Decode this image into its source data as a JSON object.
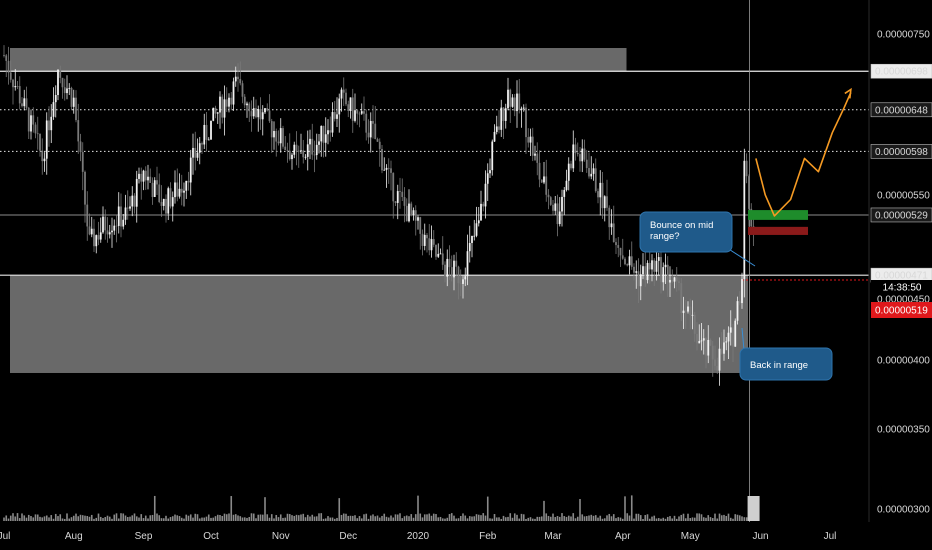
{
  "chart_data": {
    "type": "candlestick",
    "scale": "log",
    "ylim": [
      2.9e-06,
      7.9e-06
    ],
    "x_ticks": [
      "Jul",
      "Aug",
      "Sep",
      "Oct",
      "Nov",
      "Dec",
      "2020",
      "Feb",
      "Mar",
      "Apr",
      "May",
      "Jun",
      "Jul"
    ],
    "y_ticks": [
      "0.00000750",
      "0.00000550",
      "0.00000450",
      "0.00000400",
      "0.00000350",
      "0.00000300"
    ],
    "level_labels": [
      {
        "text": "0.00000698",
        "value": 6.98e-06,
        "style": "solid"
      },
      {
        "text": "0.00000648",
        "value": 6.48e-06,
        "style": "dotted"
      },
      {
        "text": "0.00000598",
        "value": 5.98e-06,
        "style": "dotted"
      },
      {
        "text": "0.00000529",
        "value": 5.29e-06,
        "style": "thin"
      },
      {
        "text": "0.00000471",
        "value": 4.71e-06,
        "style": "solid"
      }
    ],
    "current_price": {
      "label": "0.00000519",
      "countdown": "14:38:50",
      "color": "#e0181b"
    },
    "zones": [
      {
        "name": "upper-range-box",
        "y_low": 6.98e-06,
        "y_high": 7.3e-06,
        "x_start": "2019-07-01",
        "x_end": "2020-03-31",
        "color": "#8c8c8c"
      },
      {
        "name": "lower-range-box",
        "y_low": 3.9e-06,
        "y_high": 4.71e-06,
        "x_start": "2019-07-01",
        "x_end": "2020-05-24",
        "color": "#8c8c8c"
      }
    ],
    "annotations": [
      {
        "text_lines": [
          "Bounce on mid",
          "range?"
        ],
        "color": "#1f5a8a"
      },
      {
        "text_lines": [
          "Back in range"
        ],
        "color": "#1f5a8a"
      }
    ],
    "price_path": [
      [
        "2019-07-01",
        7.2e-06
      ],
      [
        "2019-07-10",
        6.5e-06
      ],
      [
        "2019-07-18",
        5.9e-06
      ],
      [
        "2019-07-25",
        7e-06
      ],
      [
        "2019-08-01",
        6.6e-06
      ],
      [
        "2019-08-08",
        5e-06
      ],
      [
        "2019-08-15",
        5.2e-06
      ],
      [
        "2019-08-25",
        5.3e-06
      ],
      [
        "2019-09-01",
        5.75e-06
      ],
      [
        "2019-09-10",
        5.4e-06
      ],
      [
        "2019-09-18",
        5.6e-06
      ],
      [
        "2019-09-25",
        6e-06
      ],
      [
        "2019-10-05",
        6.5e-06
      ],
      [
        "2019-10-12",
        6.8e-06
      ],
      [
        "2019-10-20",
        6.5e-06
      ],
      [
        "2019-10-30",
        6.2e-06
      ],
      [
        "2019-11-08",
        5.9e-06
      ],
      [
        "2019-11-18",
        6.1e-06
      ],
      [
        "2019-11-28",
        6.6e-06
      ],
      [
        "2019-12-05",
        6.4e-06
      ],
      [
        "2019-12-12",
        6.2e-06
      ],
      [
        "2019-12-20",
        5.6e-06
      ],
      [
        "2019-12-28",
        5.3e-06
      ],
      [
        "2020-01-05",
        5e-06
      ],
      [
        "2020-01-12",
        4.8e-06
      ],
      [
        "2020-01-20",
        4.7e-06
      ],
      [
        "2020-01-28",
        5.2e-06
      ],
      [
        "2020-02-03",
        6e-06
      ],
      [
        "2020-02-10",
        6.7e-06
      ],
      [
        "2020-02-17",
        6.4e-06
      ],
      [
        "2020-02-24",
        5.7e-06
      ],
      [
        "2020-03-03",
        5.3e-06
      ],
      [
        "2020-03-10",
        6e-06
      ],
      [
        "2020-03-17",
        5.8e-06
      ],
      [
        "2020-03-24",
        5.4e-06
      ],
      [
        "2020-04-01",
        4.9e-06
      ],
      [
        "2020-04-08",
        4.7e-06
      ],
      [
        "2020-04-15",
        4.8e-06
      ],
      [
        "2020-04-22",
        4.7e-06
      ],
      [
        "2020-04-29",
        4.4e-06
      ],
      [
        "2020-05-06",
        4.1e-06
      ],
      [
        "2020-05-13",
        4e-06
      ],
      [
        "2020-05-20",
        4.2e-06
      ],
      [
        "2020-05-24",
        4.7e-06
      ],
      [
        "2020-05-25",
        6e-06
      ],
      [
        "2020-05-27",
        5.3e-06
      ],
      [
        "2020-05-29",
        5.19e-06
      ]
    ],
    "projection_path": [
      [
        "2020-05-30",
        5.9e-06
      ],
      [
        "2020-06-03",
        5.5e-06
      ],
      [
        "2020-06-07",
        5.28e-06
      ],
      [
        "2020-06-14",
        5.45e-06
      ],
      [
        "2020-06-20",
        5.9e-06
      ],
      [
        "2020-06-26",
        5.75e-06
      ],
      [
        "2020-07-02",
        6.2e-06
      ],
      [
        "2020-07-07",
        6.5e-06
      ],
      [
        "2020-07-10",
        6.7e-06
      ]
    ],
    "projection_color": "#f59a23",
    "trade_zones": [
      {
        "name": "target",
        "y_low": 5.24e-06,
        "y_high": 5.34e-06,
        "color": "#1e8c2b"
      },
      {
        "name": "stop",
        "y_low": 5.09e-06,
        "y_high": 5.17e-06,
        "color": "#8b1a1a"
      }
    ],
    "grid": false,
    "legend": "none"
  }
}
